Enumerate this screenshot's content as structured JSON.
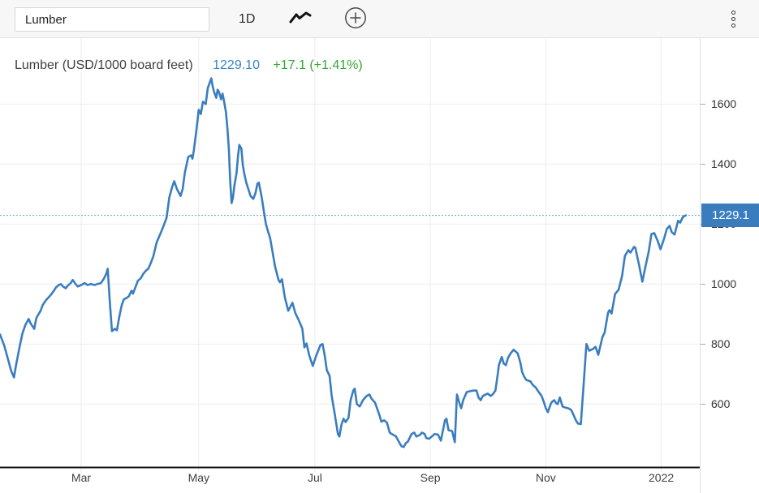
{
  "toolbar": {
    "symbol_input": {
      "value": "Lumber",
      "placeholder": ""
    },
    "interval_label": "1D",
    "chart_type_icon": "line-chart-icon",
    "compare_icon": "plus-circle-icon",
    "menu_icon": "kebab-menu-icon"
  },
  "legend": {
    "title": "Lumber (USD/1000 board feet)",
    "price": "1229.10",
    "change": "+17.1 (+1.41%)"
  },
  "price_badge": {
    "label": "1229.1"
  },
  "colors": {
    "line": "#3a7dbf",
    "badge_bg": "#3a7dbf",
    "price_text": "#3585c5",
    "change_text": "#35a535",
    "grid": "#ededed",
    "dotted_price_line": "#6ca0d2",
    "axis_text": "#333333",
    "x_axis_line": "#111111",
    "tick_mark": "#c9c9c9"
  },
  "chart_data": {
    "type": "line",
    "title": "Lumber (USD/1000 board feet)",
    "series_name": "Lumber",
    "unit": "USD/1000 board feet",
    "last_price": 1229.1,
    "change_abs": 17.1,
    "change_pct": 1.41,
    "legend_position": "top-left",
    "grid": true,
    "x_ticks": [
      {
        "label": "Mar",
        "pos": 0.116
      },
      {
        "label": "May",
        "pos": 0.284
      },
      {
        "label": "Jul",
        "pos": 0.45
      },
      {
        "label": "Sep",
        "pos": 0.615
      },
      {
        "label": "Nov",
        "pos": 0.78
      },
      {
        "label": "2022",
        "pos": 0.945
      }
    ],
    "y_ticks": [
      600,
      800,
      1000,
      1200,
      1400,
      1600
    ],
    "ylim": [
      390,
      1820
    ],
    "x_note": "pos is fraction of time axis, ~mid-Jan 2021 to late-Jan 2022",
    "points": [
      [
        0.0,
        832
      ],
      [
        0.006,
        795
      ],
      [
        0.012,
        745
      ],
      [
        0.016,
        710
      ],
      [
        0.02,
        689
      ],
      [
        0.023,
        730
      ],
      [
        0.028,
        790
      ],
      [
        0.032,
        835
      ],
      [
        0.036,
        862
      ],
      [
        0.041,
        884
      ],
      [
        0.044,
        868
      ],
      [
        0.049,
        851
      ],
      [
        0.052,
        887
      ],
      [
        0.058,
        911
      ],
      [
        0.061,
        930
      ],
      [
        0.066,
        947
      ],
      [
        0.07,
        957
      ],
      [
        0.073,
        965
      ],
      [
        0.077,
        978
      ],
      [
        0.08,
        989
      ],
      [
        0.084,
        997
      ],
      [
        0.087,
        1000
      ],
      [
        0.09,
        992
      ],
      [
        0.094,
        986
      ],
      [
        0.097,
        995
      ],
      [
        0.101,
        1003
      ],
      [
        0.104,
        1014
      ],
      [
        0.108,
        1000
      ],
      [
        0.111,
        992
      ],
      [
        0.116,
        997
      ],
      [
        0.121,
        1003
      ],
      [
        0.125,
        997
      ],
      [
        0.13,
        1000
      ],
      [
        0.135,
        997
      ],
      [
        0.139,
        1000
      ],
      [
        0.144,
        1003
      ],
      [
        0.148,
        1016
      ],
      [
        0.152,
        1035
      ],
      [
        0.154,
        1051
      ],
      [
        0.157,
        940
      ],
      [
        0.16,
        843
      ],
      [
        0.164,
        851
      ],
      [
        0.167,
        846
      ],
      [
        0.171,
        897
      ],
      [
        0.174,
        930
      ],
      [
        0.177,
        949
      ],
      [
        0.181,
        954
      ],
      [
        0.184,
        959
      ],
      [
        0.188,
        978
      ],
      [
        0.19,
        968
      ],
      [
        0.194,
        992
      ],
      [
        0.197,
        1011
      ],
      [
        0.201,
        1019
      ],
      [
        0.205,
        1035
      ],
      [
        0.209,
        1046
      ],
      [
        0.212,
        1051
      ],
      [
        0.216,
        1073
      ],
      [
        0.219,
        1092
      ],
      [
        0.224,
        1140
      ],
      [
        0.229,
        1167
      ],
      [
        0.233,
        1189
      ],
      [
        0.238,
        1221
      ],
      [
        0.242,
        1289
      ],
      [
        0.246,
        1324
      ],
      [
        0.249,
        1343
      ],
      [
        0.253,
        1316
      ],
      [
        0.258,
        1294
      ],
      [
        0.261,
        1316
      ],
      [
        0.264,
        1370
      ],
      [
        0.269,
        1424
      ],
      [
        0.273,
        1429
      ],
      [
        0.275,
        1418
      ],
      [
        0.277,
        1446
      ],
      [
        0.281,
        1518
      ],
      [
        0.284,
        1581
      ],
      [
        0.287,
        1567
      ],
      [
        0.29,
        1608
      ],
      [
        0.294,
        1600
      ],
      [
        0.297,
        1654
      ],
      [
        0.302,
        1686
      ],
      [
        0.304,
        1659
      ],
      [
        0.306,
        1640
      ],
      [
        0.309,
        1621
      ],
      [
        0.311,
        1648
      ],
      [
        0.313,
        1640
      ],
      [
        0.316,
        1616
      ],
      [
        0.318,
        1635
      ],
      [
        0.32,
        1613
      ],
      [
        0.323,
        1572
      ],
      [
        0.325,
        1518
      ],
      [
        0.327,
        1451
      ],
      [
        0.329,
        1343
      ],
      [
        0.331,
        1270
      ],
      [
        0.333,
        1289
      ],
      [
        0.335,
        1329
      ],
      [
        0.338,
        1370
      ],
      [
        0.34,
        1424
      ],
      [
        0.342,
        1464
      ],
      [
        0.345,
        1451
      ],
      [
        0.347,
        1397
      ],
      [
        0.349,
        1370
      ],
      [
        0.352,
        1338
      ],
      [
        0.355,
        1316
      ],
      [
        0.358,
        1294
      ],
      [
        0.362,
        1284
      ],
      [
        0.365,
        1302
      ],
      [
        0.368,
        1335
      ],
      [
        0.37,
        1338
      ],
      [
        0.374,
        1289
      ],
      [
        0.377,
        1243
      ],
      [
        0.38,
        1200
      ],
      [
        0.383,
        1176
      ],
      [
        0.386,
        1154
      ],
      [
        0.39,
        1100
      ],
      [
        0.393,
        1059
      ],
      [
        0.398,
        1014
      ],
      [
        0.4,
        1006
      ],
      [
        0.403,
        1016
      ],
      [
        0.407,
        957
      ],
      [
        0.412,
        911
      ],
      [
        0.418,
        938
      ],
      [
        0.422,
        903
      ],
      [
        0.427,
        879
      ],
      [
        0.432,
        852
      ],
      [
        0.435,
        789
      ],
      [
        0.438,
        802
      ],
      [
        0.442,
        762
      ],
      [
        0.447,
        727
      ],
      [
        0.452,
        762
      ],
      [
        0.458,
        797
      ],
      [
        0.461,
        800
      ],
      [
        0.464,
        762
      ],
      [
        0.467,
        713
      ],
      [
        0.471,
        694
      ],
      [
        0.474,
        627
      ],
      [
        0.478,
        573
      ],
      [
        0.483,
        500
      ],
      [
        0.485,
        492
      ],
      [
        0.488,
        532
      ],
      [
        0.491,
        551
      ],
      [
        0.494,
        540
      ],
      [
        0.498,
        554
      ],
      [
        0.501,
        613
      ],
      [
        0.505,
        646
      ],
      [
        0.507,
        651
      ],
      [
        0.51,
        600
      ],
      [
        0.514,
        592
      ],
      [
        0.519,
        614
      ],
      [
        0.524,
        627
      ],
      [
        0.528,
        632
      ],
      [
        0.531,
        618
      ],
      [
        0.536,
        605
      ],
      [
        0.542,
        565
      ],
      [
        0.545,
        541
      ],
      [
        0.549,
        546
      ],
      [
        0.553,
        538
      ],
      [
        0.557,
        505
      ],
      [
        0.56,
        500
      ],
      [
        0.566,
        492
      ],
      [
        0.571,
        470
      ],
      [
        0.574,
        459
      ],
      [
        0.577,
        457
      ],
      [
        0.58,
        470
      ],
      [
        0.583,
        475
      ],
      [
        0.588,
        500
      ],
      [
        0.592,
        505
      ],
      [
        0.595,
        492
      ],
      [
        0.6,
        497
      ],
      [
        0.603,
        505
      ],
      [
        0.607,
        500
      ],
      [
        0.609,
        487
      ],
      [
        0.613,
        484
      ],
      [
        0.617,
        492
      ],
      [
        0.621,
        500
      ],
      [
        0.626,
        498
      ],
      [
        0.63,
        478
      ],
      [
        0.636,
        546
      ],
      [
        0.638,
        551
      ],
      [
        0.641,
        513
      ],
      [
        0.646,
        510
      ],
      [
        0.65,
        473
      ],
      [
        0.653,
        632
      ],
      [
        0.657,
        600
      ],
      [
        0.659,
        586
      ],
      [
        0.662,
        613
      ],
      [
        0.667,
        640
      ],
      [
        0.672,
        643
      ],
      [
        0.676,
        645
      ],
      [
        0.681,
        645
      ],
      [
        0.684,
        621
      ],
      [
        0.687,
        613
      ],
      [
        0.69,
        627
      ],
      [
        0.694,
        632
      ],
      [
        0.697,
        635
      ],
      [
        0.701,
        627
      ],
      [
        0.704,
        632
      ],
      [
        0.708,
        645
      ],
      [
        0.711,
        694
      ],
      [
        0.713,
        730
      ],
      [
        0.717,
        757
      ],
      [
        0.72,
        735
      ],
      [
        0.723,
        730
      ],
      [
        0.726,
        754
      ],
      [
        0.73,
        770
      ],
      [
        0.734,
        781
      ],
      [
        0.738,
        773
      ],
      [
        0.74,
        768
      ],
      [
        0.744,
        735
      ],
      [
        0.746,
        708
      ],
      [
        0.749,
        692
      ],
      [
        0.752,
        681
      ],
      [
        0.755,
        678
      ],
      [
        0.758,
        676
      ],
      [
        0.761,
        665
      ],
      [
        0.766,
        654
      ],
      [
        0.769,
        643
      ],
      [
        0.774,
        627
      ],
      [
        0.777,
        608
      ],
      [
        0.78,
        586
      ],
      [
        0.783,
        573
      ],
      [
        0.787,
        600
      ],
      [
        0.789,
        608
      ],
      [
        0.792,
        613
      ],
      [
        0.795,
        602
      ],
      [
        0.797,
        600
      ],
      [
        0.8,
        622
      ],
      [
        0.804,
        592
      ],
      [
        0.807,
        589
      ],
      [
        0.812,
        586
      ],
      [
        0.816,
        581
      ],
      [
        0.819,
        567
      ],
      [
        0.823,
        546
      ],
      [
        0.826,
        535
      ],
      [
        0.83,
        533
      ],
      [
        0.834,
        663
      ],
      [
        0.838,
        800
      ],
      [
        0.842,
        778
      ],
      [
        0.847,
        783
      ],
      [
        0.851,
        791
      ],
      [
        0.855,
        764
      ],
      [
        0.861,
        824
      ],
      [
        0.864,
        838
      ],
      [
        0.869,
        905
      ],
      [
        0.871,
        913
      ],
      [
        0.874,
        902
      ],
      [
        0.879,
        967
      ],
      [
        0.884,
        981
      ],
      [
        0.889,
        1027
      ],
      [
        0.893,
        1094
      ],
      [
        0.898,
        1113
      ],
      [
        0.901,
        1105
      ],
      [
        0.906,
        1124
      ],
      [
        0.908,
        1121
      ],
      [
        0.913,
        1067
      ],
      [
        0.918,
        1008
      ],
      [
        0.922,
        1054
      ],
      [
        0.927,
        1108
      ],
      [
        0.931,
        1167
      ],
      [
        0.935,
        1170
      ],
      [
        0.94,
        1143
      ],
      [
        0.944,
        1116
      ],
      [
        0.949,
        1151
      ],
      [
        0.953,
        1184
      ],
      [
        0.957,
        1194
      ],
      [
        0.96,
        1173
      ],
      [
        0.964,
        1165
      ],
      [
        0.969,
        1211
      ],
      [
        0.972,
        1205
      ],
      [
        0.976,
        1224
      ],
      [
        0.98,
        1229.1
      ]
    ]
  }
}
